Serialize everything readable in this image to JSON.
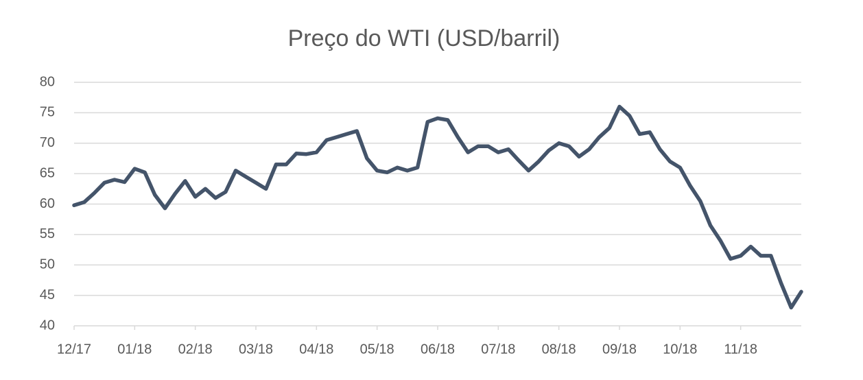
{
  "chart_data": {
    "type": "line",
    "title": "Preço do WTI (USD/barril)",
    "categories": [
      "12/17",
      null,
      null,
      null,
      null,
      null,
      "01/18",
      null,
      null,
      null,
      null,
      null,
      "02/18",
      null,
      null,
      null,
      null,
      null,
      "03/18",
      null,
      null,
      null,
      null,
      null,
      "04/18",
      null,
      null,
      null,
      null,
      null,
      "05/18",
      null,
      null,
      null,
      null,
      null,
      "06/18",
      null,
      null,
      null,
      null,
      null,
      "07/18",
      null,
      null,
      null,
      null,
      null,
      "08/18",
      null,
      null,
      null,
      null,
      null,
      "09/18",
      null,
      null,
      null,
      null,
      null,
      "10/18",
      null,
      null,
      null,
      null,
      null,
      "11/18",
      null,
      null,
      null,
      null,
      null,
      null
    ],
    "values": [
      59.8,
      60.3,
      61.8,
      63.5,
      64.0,
      63.6,
      65.8,
      65.2,
      61.5,
      59.3,
      61.7,
      63.8,
      61.2,
      62.5,
      61.0,
      62.0,
      65.5,
      64.5,
      63.5,
      62.5,
      66.5,
      66.5,
      68.3,
      68.2,
      68.5,
      70.5,
      71.0,
      71.5,
      72.0,
      67.5,
      65.5,
      65.2,
      66.0,
      65.5,
      66.0,
      73.5,
      74.1,
      73.8,
      71.0,
      68.5,
      69.5,
      69.5,
      68.5,
      69.0,
      67.2,
      65.5,
      67.0,
      68.8,
      70.0,
      69.5,
      67.8,
      69.0,
      71.0,
      72.5,
      76.0,
      74.5,
      71.5,
      71.8,
      69.0,
      67.0,
      66.0,
      63.0,
      60.5,
      56.5,
      54.0,
      51.0,
      51.5,
      53.0,
      51.5,
      51.5,
      47.0,
      43.0,
      45.6
    ],
    "color": "#44546a",
    "ylim": [
      40,
      80
    ],
    "yticks": [
      40,
      45,
      50,
      55,
      60,
      65,
      70,
      75,
      80
    ],
    "grid": true
  }
}
